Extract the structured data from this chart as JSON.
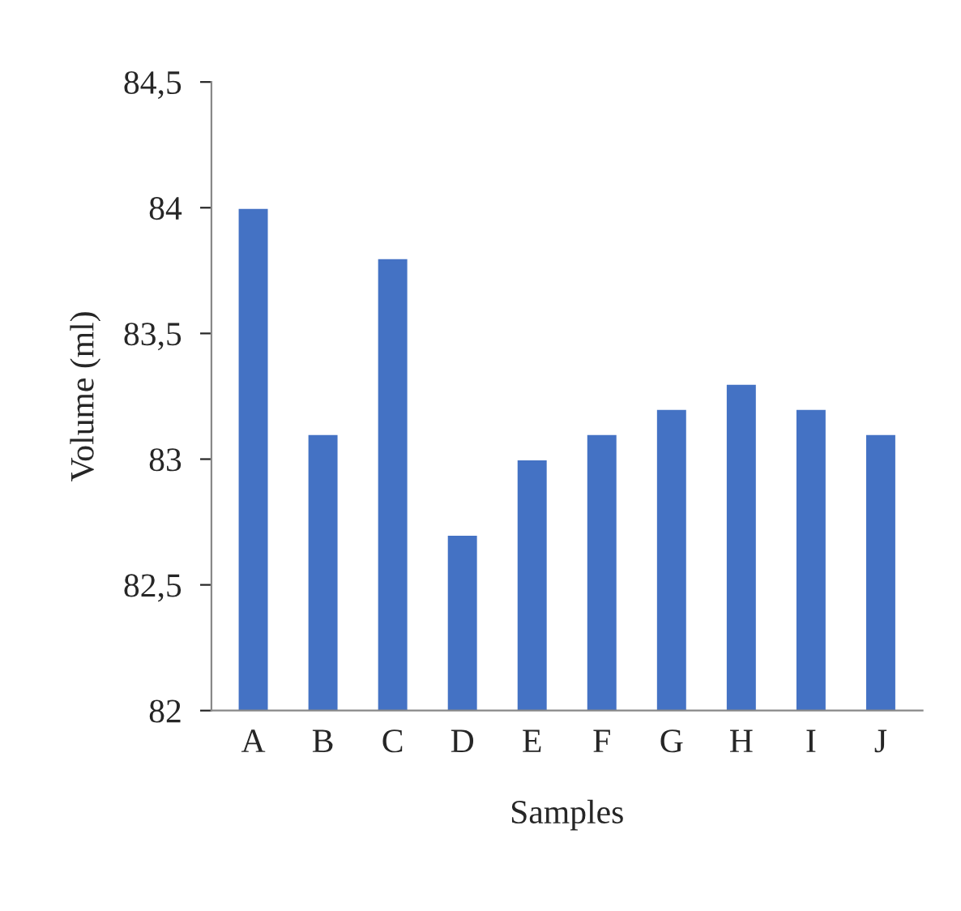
{
  "chart_data": {
    "type": "bar",
    "xlabel": "Samples",
    "ylabel": "Volume (ml)",
    "categories": [
      "A",
      "B",
      "C",
      "D",
      "E",
      "F",
      "G",
      "H",
      "I",
      "J"
    ],
    "values": [
      84,
      83.1,
      83.8,
      82.7,
      83,
      83.1,
      83.2,
      83.3,
      83.2,
      83.1
    ],
    "color": "#4472c4",
    "ylim": [
      82,
      84.5
    ],
    "yticks": [
      {
        "value": 82,
        "label": "82"
      },
      {
        "value": 82.5,
        "label": "82,5"
      },
      {
        "value": 83,
        "label": "83"
      },
      {
        "value": 83.5,
        "label": "83,5"
      },
      {
        "value": 84,
        "label": "84"
      },
      {
        "value": 84.5,
        "label": "84,5"
      }
    ],
    "grid": false
  }
}
